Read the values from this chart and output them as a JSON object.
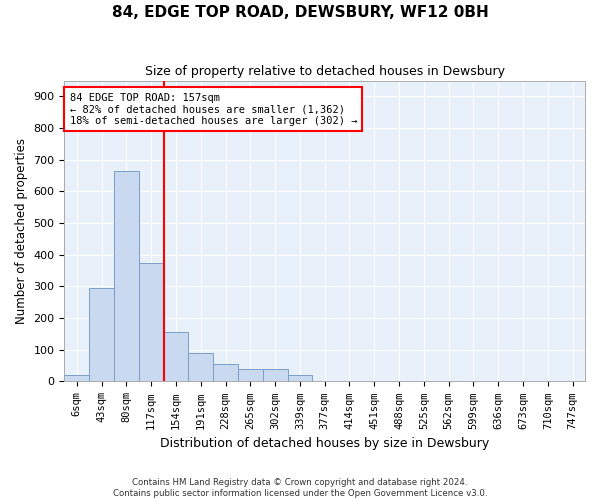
{
  "title": "84, EDGE TOP ROAD, DEWSBURY, WF12 0BH",
  "subtitle": "Size of property relative to detached houses in Dewsbury",
  "xlabel": "Distribution of detached houses by size in Dewsbury",
  "ylabel": "Number of detached properties",
  "bar_color": "#c9d9f0",
  "bar_edgecolor": "#7a9ec8",
  "background_color": "#e8f0fa",
  "grid_color": "#ffffff",
  "bin_labels": [
    "6sqm",
    "43sqm",
    "80sqm",
    "117sqm",
    "154sqm",
    "191sqm",
    "228sqm",
    "265sqm",
    "302sqm",
    "339sqm",
    "377sqm",
    "414sqm",
    "451sqm",
    "488sqm",
    "525sqm",
    "562sqm",
    "599sqm",
    "636sqm",
    "673sqm",
    "710sqm",
    "747sqm"
  ],
  "bar_values": [
    20,
    295,
    665,
    375,
    155,
    90,
    55,
    40,
    40,
    20,
    0,
    0,
    0,
    0,
    0,
    0,
    0,
    0,
    0,
    0,
    0
  ],
  "vline_x": 3.5,
  "annotation_text1": "84 EDGE TOP ROAD: 157sqm",
  "annotation_text2": "← 82% of detached houses are smaller (1,362)",
  "annotation_text3": "18% of semi-detached houses are larger (302) →",
  "annotation_box_color": "white",
  "annotation_box_edgecolor": "red",
  "vline_color": "red",
  "ylim": [
    0,
    950
  ],
  "yticks": [
    0,
    100,
    200,
    300,
    400,
    500,
    600,
    700,
    800,
    900
  ],
  "footer_line1": "Contains HM Land Registry data © Crown copyright and database right 2024.",
  "footer_line2": "Contains public sector information licensed under the Open Government Licence v3.0."
}
